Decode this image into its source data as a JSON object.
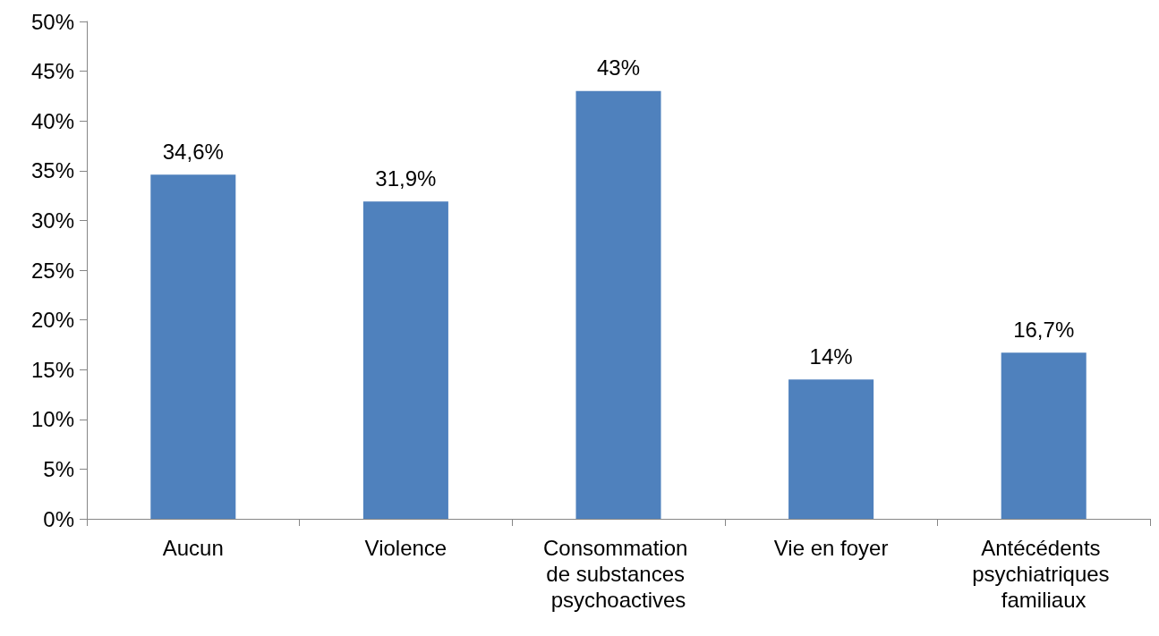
{
  "chart_data": {
    "type": "bar",
    "categories": [
      "Aucun",
      "Violence",
      "Consommation de substances psychoactives",
      "Vie en foyer",
      "Antécédents psychiatriques familiaux"
    ],
    "values": [
      34.6,
      31.9,
      43,
      14,
      16.7
    ],
    "value_labels": [
      "34,6%",
      "31,9%",
      "43%",
      "14%",
      "16,7%"
    ],
    "color": "#4f81bd",
    "ylim": [
      0,
      50
    ],
    "yticks": [
      {
        "value": 0,
        "label": "0%"
      },
      {
        "value": 5,
        "label": "5%"
      },
      {
        "value": 10,
        "label": "10%"
      },
      {
        "value": 15,
        "label": "15%"
      },
      {
        "value": 20,
        "label": "20%"
      },
      {
        "value": 25,
        "label": "25%"
      },
      {
        "value": 30,
        "label": "30%"
      },
      {
        "value": 35,
        "label": "35%"
      },
      {
        "value": 40,
        "label": "40%"
      },
      {
        "value": 45,
        "label": "45%"
      },
      {
        "value": 50,
        "label": "50%"
      }
    ],
    "grid": false
  }
}
